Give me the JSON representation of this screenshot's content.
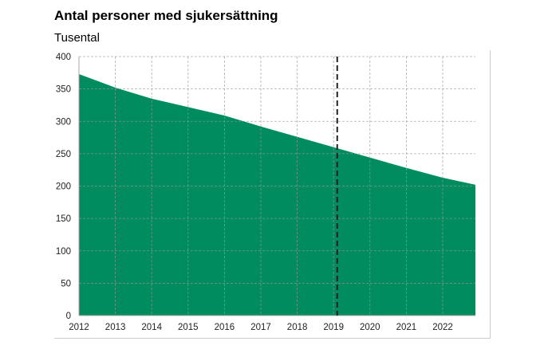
{
  "chart_data": {
    "type": "area",
    "title": "Antal personer med sjukersättning",
    "subtitle": "Tusental",
    "xlabel": "",
    "ylabel": "Tusental",
    "x": [
      2012,
      2013,
      2014,
      2015,
      2016,
      2017,
      2018,
      2019,
      2020,
      2021,
      2022,
      2022.9
    ],
    "values": [
      373,
      352,
      335,
      322,
      309,
      292,
      276,
      260,
      244,
      228,
      213,
      202
    ],
    "xlim": [
      2012,
      2022.9
    ],
    "ylim": [
      0,
      400
    ],
    "x_ticks": [
      "2012",
      "2013",
      "2014",
      "2015",
      "2016",
      "2017",
      "2018",
      "2019",
      "2020",
      "2021",
      "2022"
    ],
    "y_ticks": [
      "0",
      "50",
      "100",
      "150",
      "200",
      "250",
      "300",
      "350",
      "400"
    ],
    "forecast_marker_x": 2019.1,
    "grid": true,
    "fill_color": "#008c5e"
  }
}
